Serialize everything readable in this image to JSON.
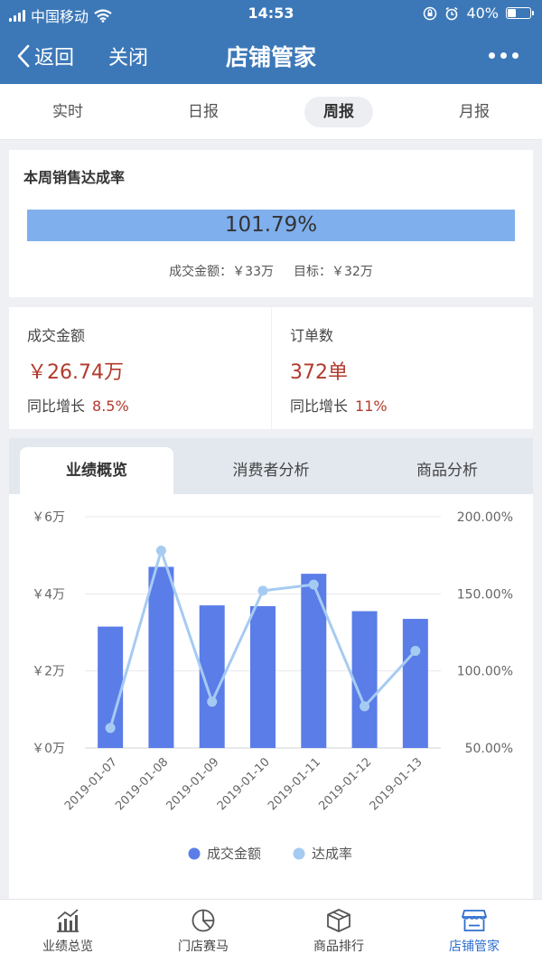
{
  "status_bar": {
    "carrier": "中国移动",
    "time": "14:53",
    "battery": "40%",
    "battery_level": 0.4
  },
  "nav": {
    "back_label": "返回",
    "close_label": "关闭",
    "title": "店铺管家"
  },
  "period_tabs": [
    {
      "label": "实时",
      "active": false
    },
    {
      "label": "日报",
      "active": false
    },
    {
      "label": "周报",
      "active": true
    },
    {
      "label": "月报",
      "active": false
    }
  ],
  "sales_rate": {
    "title": "本周销售达成率",
    "percent_text": "101.79%",
    "progress": 1.0179,
    "amount": "成交金额：￥33万",
    "target": "目标：￥32万",
    "bar_color": "#7fafec"
  },
  "stats": {
    "amount": {
      "label": "成交金额",
      "value": "￥26.74万",
      "growth_label": "同比增长",
      "growth_value": "8.5%"
    },
    "orders": {
      "label": "订单数",
      "value": "372单",
      "growth_label": "同比增长",
      "growth_value": "11%"
    }
  },
  "analysis_tabs": [
    {
      "label": "业绩概览",
      "active": true
    },
    {
      "label": "消费者分析",
      "active": false
    },
    {
      "label": "商品分析",
      "active": false
    }
  ],
  "chart_data": {
    "type": "bar",
    "categories": [
      "2019-01-07",
      "2019-01-08",
      "2019-01-09",
      "2019-01-10",
      "2019-01-11",
      "2019-01-12",
      "2019-01-13"
    ],
    "series": [
      {
        "name": "成交金额",
        "type": "bar",
        "axis": "left",
        "color": "#5b7de8",
        "values": [
          31500,
          47000,
          37000,
          36800,
          45200,
          35500,
          33500
        ]
      },
      {
        "name": "达成率",
        "type": "line",
        "axis": "right",
        "color": "#a6cbf2",
        "values": [
          63,
          178,
          80,
          152,
          156,
          77,
          113
        ]
      }
    ],
    "y_left": {
      "min": 0,
      "max": 60000,
      "ticks": [
        0,
        20000,
        40000,
        60000
      ],
      "tick_labels": [
        "￥0万",
        "￥2万",
        "￥4万",
        "￥6万"
      ]
    },
    "y_right": {
      "min": 50,
      "max": 200,
      "ticks": [
        50,
        100,
        150,
        200
      ],
      "tick_labels": [
        "50.00%",
        "100.00%",
        "150.00%",
        "200.00%"
      ]
    },
    "grid": true,
    "legend": "bottom-center"
  },
  "tab_bar": [
    {
      "label": "业绩总览",
      "icon": "bar-trend-icon",
      "active": false
    },
    {
      "label": "门店赛马",
      "icon": "pie-chart-icon",
      "active": false
    },
    {
      "label": "商品排行",
      "icon": "box-icon",
      "active": false
    },
    {
      "label": "店铺管家",
      "icon": "store-icon",
      "active": true
    }
  ]
}
